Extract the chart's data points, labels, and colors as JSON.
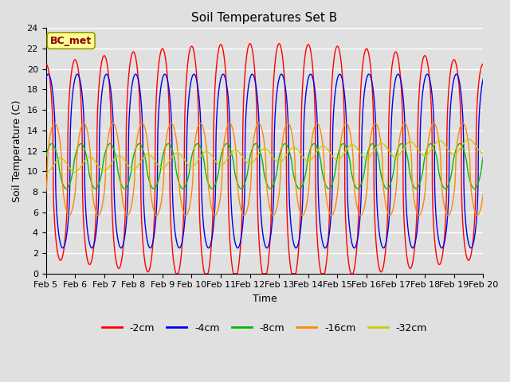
{
  "title": "Soil Temperatures Set B",
  "xlabel": "Time",
  "ylabel": "Soil Temperature (C)",
  "annotation": "BC_met",
  "ylim": [
    0,
    24
  ],
  "start_day": 5,
  "end_day": 20,
  "xtick_labels": [
    "Feb 5",
    "Feb 6",
    "Feb 7",
    "Feb 8",
    "Feb 9",
    "Feb 10",
    "Feb 11",
    "Feb 12",
    "Feb 13",
    "Feb 14",
    "Feb 15",
    "Feb 16",
    "Feb 17",
    "Feb 18",
    "Feb 19",
    "Feb 20"
  ],
  "colors": {
    "-2cm": "#FF0000",
    "-4cm": "#0000EE",
    "-8cm": "#00BB00",
    "-16cm": "#FF8800",
    "-32cm": "#CCCC00"
  },
  "bg_color": "#E0E0E0",
  "grid_color": "#FFFFFF",
  "title_fontsize": 11,
  "legend_fontsize": 9,
  "tick_fontsize": 8,
  "label_fontsize": 9
}
